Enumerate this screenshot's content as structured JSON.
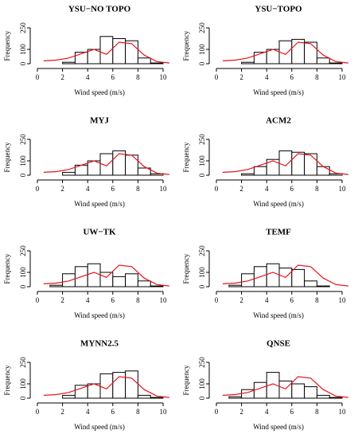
{
  "chart_data": [
    {
      "type": "histogram",
      "title": "YSU−NO TOPO",
      "xlabel": "Wind speed (m/s)",
      "ylabel": "Frequency",
      "bins": [
        0,
        1,
        2,
        3,
        4,
        5,
        6,
        7,
        8,
        9,
        10
      ],
      "values": [
        0,
        0,
        10,
        80,
        100,
        190,
        175,
        160,
        40,
        5
      ],
      "color": "#ffffff",
      "series": [
        {
          "color": "#e8141c",
          "x": [
            0.5,
            1.5,
            2.5,
            3.5,
            4.5,
            5.5,
            6.5,
            7.5,
            8.5,
            9.5,
            10.5
          ],
          "values": [
            20,
            25,
            40,
            70,
            100,
            65,
            150,
            140,
            60,
            15,
            5
          ]
        }
      ],
      "xlim": [
        0,
        10
      ],
      "ylim": [
        0,
        250
      ],
      "xticks": [
        0,
        2,
        4,
        6,
        8,
        10
      ],
      "yticks": [
        0,
        100,
        250
      ]
    },
    {
      "type": "histogram",
      "title": "YSU−TOPO",
      "xlabel": "Wind speed (m/s)",
      "ylabel": "Frequency",
      "bins": [
        0,
        1,
        2,
        3,
        4,
        5,
        6,
        7,
        8,
        9,
        10
      ],
      "values": [
        0,
        0,
        10,
        80,
        100,
        160,
        170,
        150,
        40,
        5
      ],
      "color": "#ffffff",
      "series": [
        {
          "color": "#e8141c",
          "x": [
            0.5,
            1.5,
            2.5,
            3.5,
            4.5,
            5.5,
            6.5,
            7.5,
            8.5,
            9.5,
            10.5
          ],
          "values": [
            20,
            25,
            40,
            70,
            100,
            65,
            150,
            140,
            60,
            15,
            5
          ]
        }
      ],
      "xlim": [
        0,
        10
      ],
      "ylim": [
        0,
        250
      ],
      "xticks": [
        0,
        2,
        4,
        6,
        8,
        10
      ],
      "yticks": [
        0,
        100,
        250
      ]
    },
    {
      "type": "histogram",
      "title": "MYJ",
      "xlabel": "Wind speed (m/s)",
      "ylabel": "Frequency",
      "bins": [
        0,
        1,
        2,
        3,
        4,
        5,
        6,
        7,
        8,
        9,
        10
      ],
      "values": [
        0,
        0,
        20,
        70,
        100,
        150,
        170,
        140,
        50,
        10
      ],
      "color": "#ffffff",
      "series": [
        {
          "color": "#e8141c",
          "x": [
            0.5,
            1.5,
            2.5,
            3.5,
            4.5,
            5.5,
            6.5,
            7.5,
            8.5,
            9.5,
            10.5
          ],
          "values": [
            20,
            25,
            40,
            70,
            100,
            65,
            150,
            140,
            60,
            15,
            5
          ]
        }
      ],
      "xlim": [
        0,
        10
      ],
      "ylim": [
        0,
        250
      ],
      "xticks": [
        0,
        2,
        4,
        6,
        8,
        10
      ],
      "yticks": [
        0,
        100,
        250
      ]
    },
    {
      "type": "histogram",
      "title": "ACM2",
      "xlabel": "Wind speed (m/s)",
      "ylabel": "Frequency",
      "bins": [
        0,
        1,
        2,
        3,
        4,
        5,
        6,
        7,
        8,
        9,
        10
      ],
      "values": [
        0,
        0,
        10,
        60,
        110,
        170,
        160,
        150,
        60,
        10
      ],
      "color": "#ffffff",
      "series": [
        {
          "color": "#e8141c",
          "x": [
            0.5,
            1.5,
            2.5,
            3.5,
            4.5,
            5.5,
            6.5,
            7.5,
            8.5,
            9.5,
            10.5
          ],
          "values": [
            20,
            25,
            40,
            70,
            100,
            65,
            150,
            140,
            60,
            15,
            5
          ]
        }
      ],
      "xlim": [
        0,
        10
      ],
      "ylim": [
        0,
        250
      ],
      "xticks": [
        0,
        2,
        4,
        6,
        8,
        10
      ],
      "yticks": [
        0,
        100,
        250
      ]
    },
    {
      "type": "histogram",
      "title": "UW−TK",
      "xlabel": "Wind speed (m/s)",
      "ylabel": "Frequency",
      "bins": [
        0,
        1,
        2,
        3,
        4,
        5,
        6,
        7,
        8,
        9,
        10
      ],
      "values": [
        0,
        10,
        90,
        140,
        160,
        100,
        70,
        90,
        40,
        5
      ],
      "color": "#ffffff",
      "series": [
        {
          "color": "#e8141c",
          "x": [
            0.5,
            1.5,
            2.5,
            3.5,
            4.5,
            5.5,
            6.5,
            7.5,
            8.5,
            9.5,
            10.5
          ],
          "values": [
            20,
            25,
            40,
            70,
            100,
            65,
            150,
            140,
            60,
            15,
            5
          ]
        }
      ],
      "xlim": [
        0,
        10
      ],
      "ylim": [
        0,
        250
      ],
      "xticks": [
        0,
        2,
        4,
        6,
        8,
        10
      ],
      "yticks": [
        0,
        100,
        250
      ]
    },
    {
      "type": "histogram",
      "title": "TEMF",
      "xlabel": "Wind speed (m/s)",
      "ylabel": "Frequency",
      "bins": [
        0,
        1,
        2,
        3,
        4,
        5,
        6,
        7,
        8,
        9,
        10
      ],
      "values": [
        0,
        10,
        90,
        140,
        160,
        130,
        120,
        40,
        5,
        0
      ],
      "color": "#ffffff",
      "series": [
        {
          "color": "#e8141c",
          "x": [
            0.5,
            1.5,
            2.5,
            3.5,
            4.5,
            5.5,
            6.5,
            7.5,
            8.5,
            9.5,
            10.5
          ],
          "values": [
            20,
            25,
            40,
            70,
            100,
            65,
            150,
            140,
            60,
            15,
            5
          ]
        }
      ],
      "xlim": [
        0,
        10
      ],
      "ylim": [
        0,
        250
      ],
      "xticks": [
        0,
        2,
        4,
        6,
        8,
        10
      ],
      "yticks": [
        0,
        100,
        250
      ]
    },
    {
      "type": "histogram",
      "title": "MYNN2.5",
      "xlabel": "Wind speed (m/s)",
      "ylabel": "Frequency",
      "bins": [
        0,
        1,
        2,
        3,
        4,
        5,
        6,
        7,
        8,
        9,
        10
      ],
      "values": [
        0,
        0,
        20,
        90,
        100,
        170,
        180,
        190,
        20,
        5
      ],
      "color": "#ffffff",
      "series": [
        {
          "color": "#e8141c",
          "x": [
            0.5,
            1.5,
            2.5,
            3.5,
            4.5,
            5.5,
            6.5,
            7.5,
            8.5,
            9.5,
            10.5
          ],
          "values": [
            20,
            25,
            40,
            70,
            100,
            65,
            150,
            140,
            60,
            15,
            5
          ]
        }
      ],
      "xlim": [
        0,
        10
      ],
      "ylim": [
        0,
        250
      ],
      "xticks": [
        0,
        2,
        4,
        6,
        8,
        10
      ],
      "yticks": [
        0,
        100,
        250
      ]
    },
    {
      "type": "histogram",
      "title": "QNSE",
      "xlabel": "Wind speed (m/s)",
      "ylabel": "Frequency",
      "bins": [
        0,
        1,
        2,
        3,
        4,
        5,
        6,
        7,
        8,
        9,
        10
      ],
      "values": [
        0,
        10,
        60,
        110,
        180,
        120,
        100,
        80,
        20,
        5
      ],
      "color": "#ffffff",
      "series": [
        {
          "color": "#e8141c",
          "x": [
            0.5,
            1.5,
            2.5,
            3.5,
            4.5,
            5.5,
            6.5,
            7.5,
            8.5,
            9.5,
            10.5
          ],
          "values": [
            20,
            25,
            40,
            70,
            100,
            65,
            150,
            140,
            60,
            15,
            5
          ]
        }
      ],
      "xlim": [
        0,
        10
      ],
      "ylim": [
        0,
        250
      ],
      "xticks": [
        0,
        2,
        4,
        6,
        8,
        10
      ],
      "yticks": [
        0,
        100,
        250
      ]
    }
  ]
}
